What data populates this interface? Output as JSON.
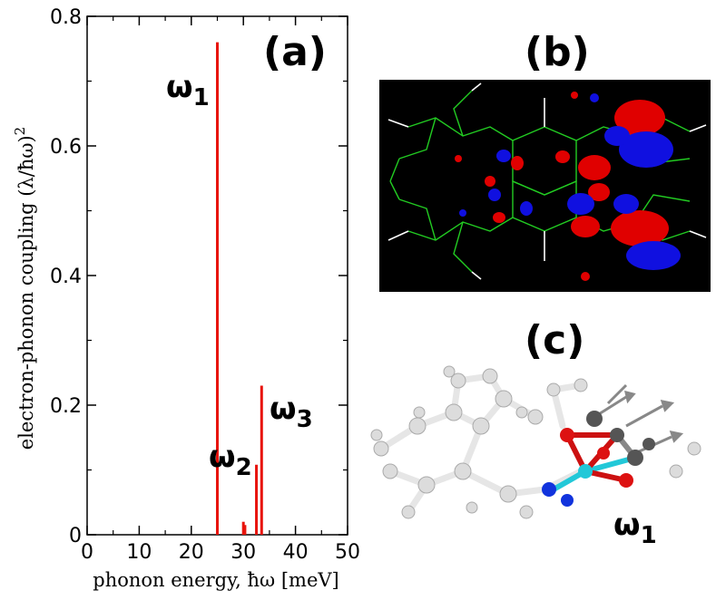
{
  "colors": {
    "bar": "#e8140c",
    "axis": "#000000",
    "isosurface_red": "#e00000",
    "isosurface_blue": "#1010e0",
    "bond_green": "#22cc22",
    "panel_b_background": "#000000",
    "atom_grey": "#d8d8d8",
    "atom_dark": "#555555",
    "atom_red": "#dd1111",
    "atom_blue": "#1133dd",
    "metal_cyan": "#22c8d8"
  },
  "panels": {
    "a": {
      "label": "(a)"
    },
    "b": {
      "label": "(b)"
    },
    "c": {
      "label": "(c)",
      "mode_label": "ω",
      "mode_sub": "1"
    }
  },
  "chart_data": {
    "type": "bar",
    "xlabel": "phonon energy, ħω [meV]",
    "ylabel": "electron-phonon coupling (λ/ħω)",
    "ylabel_superscript": "2",
    "xlim": [
      0,
      50
    ],
    "ylim": [
      0,
      0.8
    ],
    "xticks": [
      0,
      10,
      20,
      30,
      40,
      50
    ],
    "xtick_labels": [
      "0",
      "10",
      "20",
      "30",
      "40",
      "50"
    ],
    "yticks": [
      0,
      0.2,
      0.4,
      0.6,
      0.8
    ],
    "ytick_labels": [
      "0",
      "0.2",
      "0.4",
      "0.6",
      "0.8"
    ],
    "grid": false,
    "series": [
      {
        "x": [
          25.0,
          30.0,
          30.3,
          32.5,
          33.5
        ],
        "values": [
          0.76,
          0.02,
          0.015,
          0.108,
          0.23
        ]
      }
    ],
    "annotations": [
      {
        "text": "ω",
        "sub": "1",
        "x": 25.0
      },
      {
        "text": "ω",
        "sub": "2",
        "x": 32.5
      },
      {
        "text": "ω",
        "sub": "3",
        "x": 33.5
      }
    ]
  }
}
